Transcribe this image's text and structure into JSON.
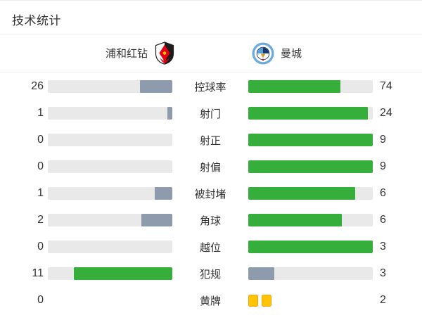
{
  "title": "技术统计",
  "header": {
    "home_team": "浦和红钻",
    "away_team": "曼城"
  },
  "colors": {
    "green": "#36ae3b",
    "slate": "#8d9bac",
    "track": "#e9e9e9",
    "card_fill": "#ffc408",
    "card_border": "#eba506",
    "text": "#333333",
    "divider": "#ededed",
    "urawa_red": "#e60012",
    "urawa_black": "#1d1d1b",
    "city_blue": "#6babdd",
    "city_navy": "#1b3a6b",
    "city_gold": "#d4a127",
    "city_red": "#c8102e"
  },
  "rows": [
    {
      "label": "控球率",
      "home": "26",
      "away": "74",
      "home_fill": 26,
      "away_fill": 74,
      "home_color": "slate",
      "away_color": "green"
    },
    {
      "label": "射门",
      "home": "1",
      "away": "24",
      "home_fill": 4,
      "away_fill": 96,
      "home_color": "slate",
      "away_color": "green"
    },
    {
      "label": "射正",
      "home": "0",
      "away": "9",
      "home_fill": 0,
      "away_fill": 100,
      "home_color": "slate",
      "away_color": "green"
    },
    {
      "label": "射偏",
      "home": "0",
      "away": "9",
      "home_fill": 0,
      "away_fill": 100,
      "home_color": "slate",
      "away_color": "green"
    },
    {
      "label": "被封堵",
      "home": "1",
      "away": "6",
      "home_fill": 14,
      "away_fill": 86,
      "home_color": "slate",
      "away_color": "green"
    },
    {
      "label": "角球",
      "home": "2",
      "away": "6",
      "home_fill": 25,
      "away_fill": 75,
      "home_color": "slate",
      "away_color": "green"
    },
    {
      "label": "越位",
      "home": "0",
      "away": "3",
      "home_fill": 0,
      "away_fill": 100,
      "home_color": "slate",
      "away_color": "green"
    },
    {
      "label": "犯规",
      "home": "11",
      "away": "3",
      "home_fill": 79,
      "away_fill": 21,
      "home_color": "green",
      "away_color": "slate"
    },
    {
      "label": "黄牌",
      "home": "0",
      "away": "2",
      "home_fill": 0,
      "away_fill": 0,
      "home_color": "slate",
      "away_color": "slate",
      "away_cards": 2,
      "no_track": true
    }
  ],
  "chart_data": {
    "type": "bar",
    "orientation": "horizontal-paired",
    "title": "技术统计",
    "categories": [
      "控球率",
      "射门",
      "射正",
      "射偏",
      "被封堵",
      "角球",
      "越位",
      "犯规",
      "黄牌"
    ],
    "series": [
      {
        "name": "浦和红钻",
        "values": [
          26,
          1,
          0,
          0,
          1,
          2,
          0,
          11,
          0
        ]
      },
      {
        "name": "曼城",
        "values": [
          74,
          24,
          9,
          9,
          6,
          6,
          3,
          3,
          2
        ]
      }
    ],
    "legend_position": "top",
    "notes": "Each stat rendered as two opposing bars scaled to value/(home+away); team with higher value shown green, lower shown slate gray; yellow cards row shows 2 card icons instead of a bar."
  }
}
